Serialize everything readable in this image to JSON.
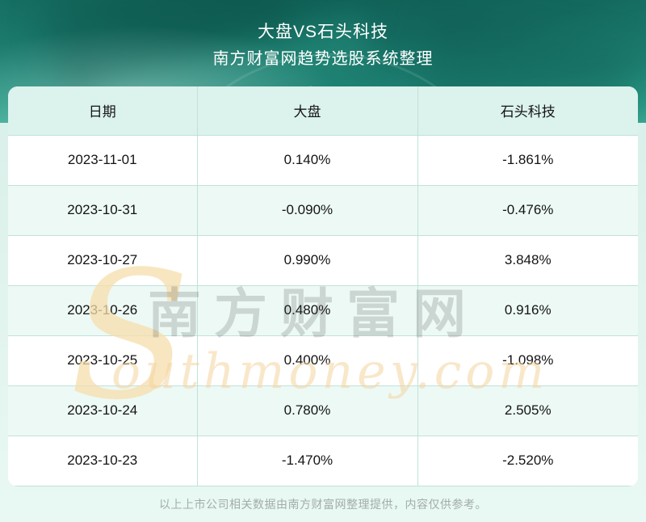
{
  "header": {
    "title": "大盘VS石头科技",
    "subtitle": "南方财富网趋势选股系统整理"
  },
  "table": {
    "columns": [
      "日期",
      "大盘",
      "石头科技"
    ],
    "rows": [
      {
        "date": "2023-11-01",
        "market": "0.140%",
        "stock": "-1.861%"
      },
      {
        "date": "2023-10-31",
        "market": "-0.090%",
        "stock": "-0.476%"
      },
      {
        "date": "2023-10-27",
        "market": "0.990%",
        "stock": "3.848%"
      },
      {
        "date": "2023-10-26",
        "market": "0.480%",
        "stock": "0.916%"
      },
      {
        "date": "2023-10-25",
        "market": "0.400%",
        "stock": "-1.098%"
      },
      {
        "date": "2023-10-24",
        "market": "0.780%",
        "stock": "2.505%"
      },
      {
        "date": "2023-10-23",
        "market": "-1.470%",
        "stock": "-2.520%"
      }
    ]
  },
  "watermark": {
    "s_glyph": "S",
    "cjk": "南方财富网",
    "latin": "outhmoney.com"
  },
  "footer": {
    "note": "以上上市公司相关数据由南方财富网整理提供，内容仅供参考。"
  },
  "colors": {
    "hero_dark_teal": "#14695e",
    "hero_mid_teal": "#2b9a87",
    "page_mint": "#e2f4ee",
    "table_header_bg": "#dcf2ec",
    "row_alt_bg": "#edf9f5",
    "grid_line": "#bfe2da",
    "cell_text": "#141414",
    "footer_text": "#a2adaa",
    "watermark_orange": "#f4d49e",
    "watermark_gray": "#bdbdbd"
  }
}
